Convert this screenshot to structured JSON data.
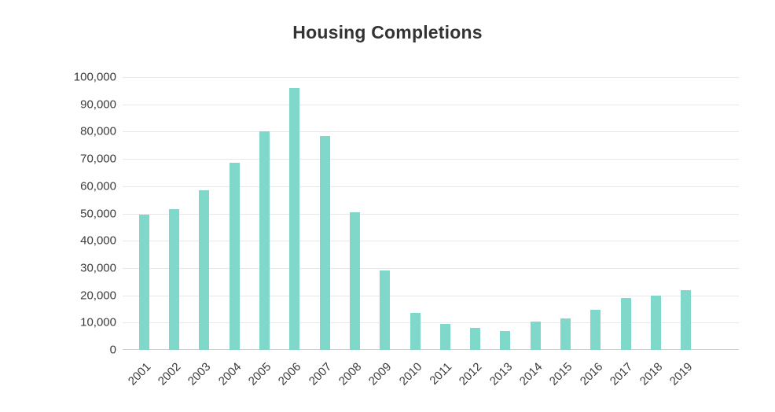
{
  "chart_data": {
    "type": "bar",
    "title": "Housing Completions",
    "categories": [
      "2001",
      "2002",
      "2003",
      "2004",
      "2005",
      "2006",
      "2007",
      "2008",
      "2009",
      "2010",
      "2011",
      "2012",
      "2013",
      "2014",
      "2015",
      "2016",
      "2017",
      "2018",
      "2019"
    ],
    "values": [
      49500,
      51500,
      58500,
      68500,
      80000,
      96000,
      78500,
      50500,
      29000,
      13500,
      9500,
      8000,
      7000,
      10500,
      11500,
      14800,
      19000,
      19800,
      22000
    ],
    "xlabel": "",
    "ylabel": "",
    "ylim": [
      0,
      100000
    ],
    "y_tick_labels": [
      "0",
      "10,000",
      "20,000",
      "30,000",
      "40,000",
      "50,000",
      "60,000",
      "70,000",
      "80,000",
      "90,000",
      "100,000"
    ],
    "grid": true,
    "legend_position": "none"
  },
  "colors": {
    "bar": "#7fd8c9",
    "gridline": "#e8e8e8",
    "axis_line": "#cfcfcf",
    "tick_text": "#3b3b3b",
    "title_text": "#333333",
    "background": "#ffffff"
  }
}
